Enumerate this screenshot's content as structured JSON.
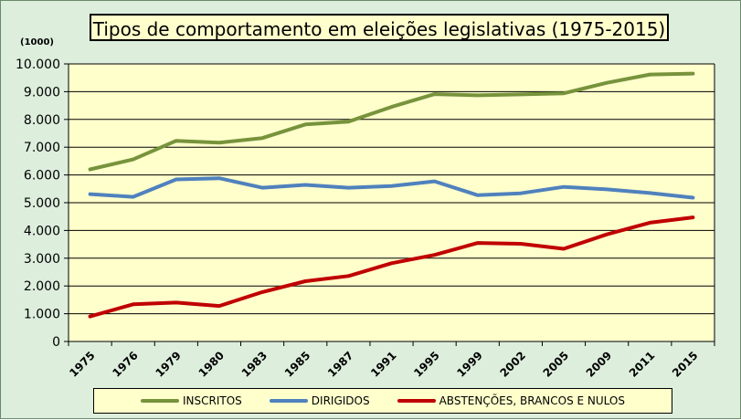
{
  "chart_data": {
    "type": "line",
    "title": "Tipos de comportamento em eleições legislativas (1975-2015)",
    "unit_label": "(1000)",
    "categories": [
      "1975",
      "1976",
      "1979",
      "1980",
      "1983",
      "1985",
      "1987",
      "1991",
      "1995",
      "1999",
      "2002",
      "2005",
      "2009",
      "2011",
      "2015"
    ],
    "ylim": [
      0,
      10000
    ],
    "yticks": [
      "0",
      "1.000",
      "2.000",
      "3.000",
      "4.000",
      "5.000",
      "6.000",
      "7.000",
      "8.000",
      "9.000",
      "10.000"
    ],
    "grid": true,
    "legend_position": "bottom",
    "series": [
      {
        "name": "INSCRITOS",
        "color": "#77933c",
        "values": [
          6200,
          6560,
          7230,
          7160,
          7330,
          7820,
          7920,
          8450,
          8910,
          8870,
          8900,
          8940,
          9320,
          9620,
          9650
        ]
      },
      {
        "name": "DIRIGIDOS",
        "color": "#4f81bd",
        "values": [
          5310,
          5210,
          5840,
          5880,
          5540,
          5640,
          5540,
          5600,
          5770,
          5270,
          5340,
          5570,
          5480,
          5350,
          5180
        ]
      },
      {
        "name": "ABSTENÇÕES, BRANCOS E NULOS",
        "color": "#c00000",
        "values": [
          900,
          1340,
          1400,
          1280,
          1780,
          2170,
          2360,
          2820,
          3120,
          3550,
          3520,
          3340,
          3860,
          4280,
          4470
        ]
      }
    ]
  }
}
